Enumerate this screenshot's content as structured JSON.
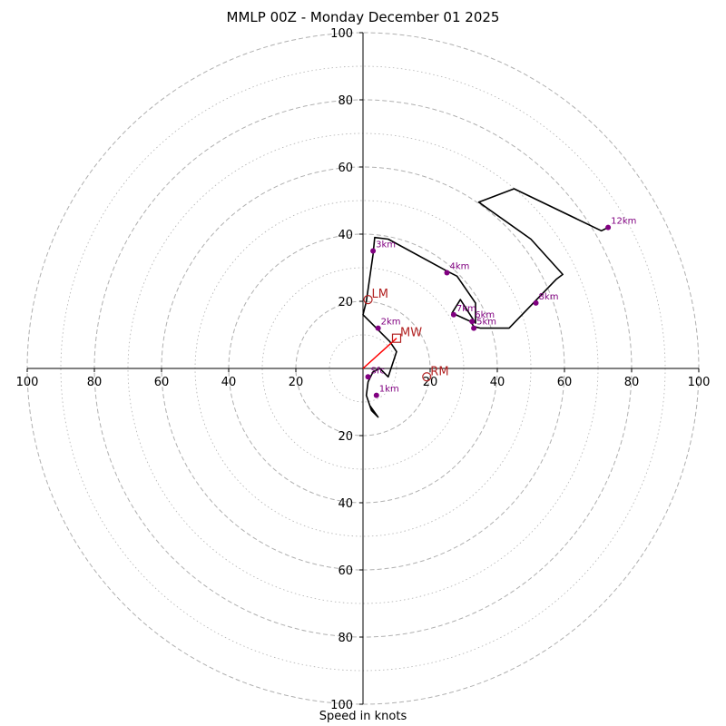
{
  "title": "MMLP 00Z - Monday December 01 2025",
  "chart_data": {
    "type": "hodograph",
    "title": "MMLP 00Z - Monday December 01 2025",
    "xlabel": "Speed in knots",
    "ylabel": "",
    "range": [
      -100,
      100
    ],
    "major_rings": [
      20,
      40,
      60,
      80,
      100
    ],
    "minor_rings": [
      10,
      30,
      50,
      70,
      90
    ],
    "tick_labels": [
      "100",
      "80",
      "60",
      "40",
      "20",
      "20",
      "40",
      "60",
      "80",
      "100"
    ],
    "colors": {
      "hodo_line": "#000000",
      "height_marker": "#800080",
      "motion_marker": "#b22222",
      "mean_wind_vector": "#ff0000",
      "rings": "#b0b0b0"
    },
    "hodo_line": [
      [
        2,
        -11
      ],
      [
        4.5,
        -14.5
      ],
      [
        2.5,
        -12.5
      ],
      [
        1,
        -8
      ],
      [
        1.5,
        -4
      ],
      [
        3,
        -1
      ],
      [
        5,
        0
      ],
      [
        7.5,
        -2.5
      ],
      [
        10,
        5
      ],
      [
        8,
        8
      ],
      [
        5,
        11
      ],
      [
        0,
        16
      ],
      [
        1,
        20
      ],
      [
        3,
        34
      ],
      [
        3.5,
        39
      ],
      [
        7.5,
        38.5
      ],
      [
        25,
        29
      ],
      [
        28,
        27.5
      ],
      [
        33.5,
        19.5
      ],
      [
        33.5,
        13.5
      ],
      [
        29,
        20.5
      ],
      [
        26.5,
        16.5
      ],
      [
        32,
        14
      ],
      [
        33,
        12.5
      ],
      [
        35,
        12
      ],
      [
        43.5,
        12
      ],
      [
        57.5,
        26.5
      ],
      [
        59.5,
        28
      ],
      [
        50,
        38.5
      ],
      [
        34.5,
        49.5
      ],
      [
        45,
        53.5
      ],
      [
        71,
        41
      ],
      [
        73,
        42
      ]
    ],
    "height_points": [
      {
        "label": "Sfc",
        "u": 1.5,
        "v": -2.5
      },
      {
        "label": "1km",
        "u": 4,
        "v": -8
      },
      {
        "label": "2km",
        "u": 4.5,
        "v": 12
      },
      {
        "label": "3km",
        "u": 3,
        "v": 35
      },
      {
        "label": "4km",
        "u": 25,
        "v": 28.5
      },
      {
        "label": "5km",
        "u": 33,
        "v": 12
      },
      {
        "label": "6km",
        "u": 32.5,
        "v": 14
      },
      {
        "label": "7km",
        "u": 27,
        "v": 16
      },
      {
        "label": "8km",
        "u": 51.5,
        "v": 19.5
      },
      {
        "label": "12km",
        "u": 73,
        "v": 42
      }
    ],
    "storm_motion": [
      {
        "label": "LM",
        "u": 1.5,
        "v": 20.5,
        "marker": "circle"
      },
      {
        "label": "MW",
        "u": 10,
        "v": 9,
        "marker": "square"
      },
      {
        "label": "RM",
        "u": 19,
        "v": -2.5,
        "marker": "circle"
      }
    ],
    "mean_wind_vector": {
      "from": [
        0,
        0
      ],
      "to": [
        10,
        9
      ]
    }
  }
}
